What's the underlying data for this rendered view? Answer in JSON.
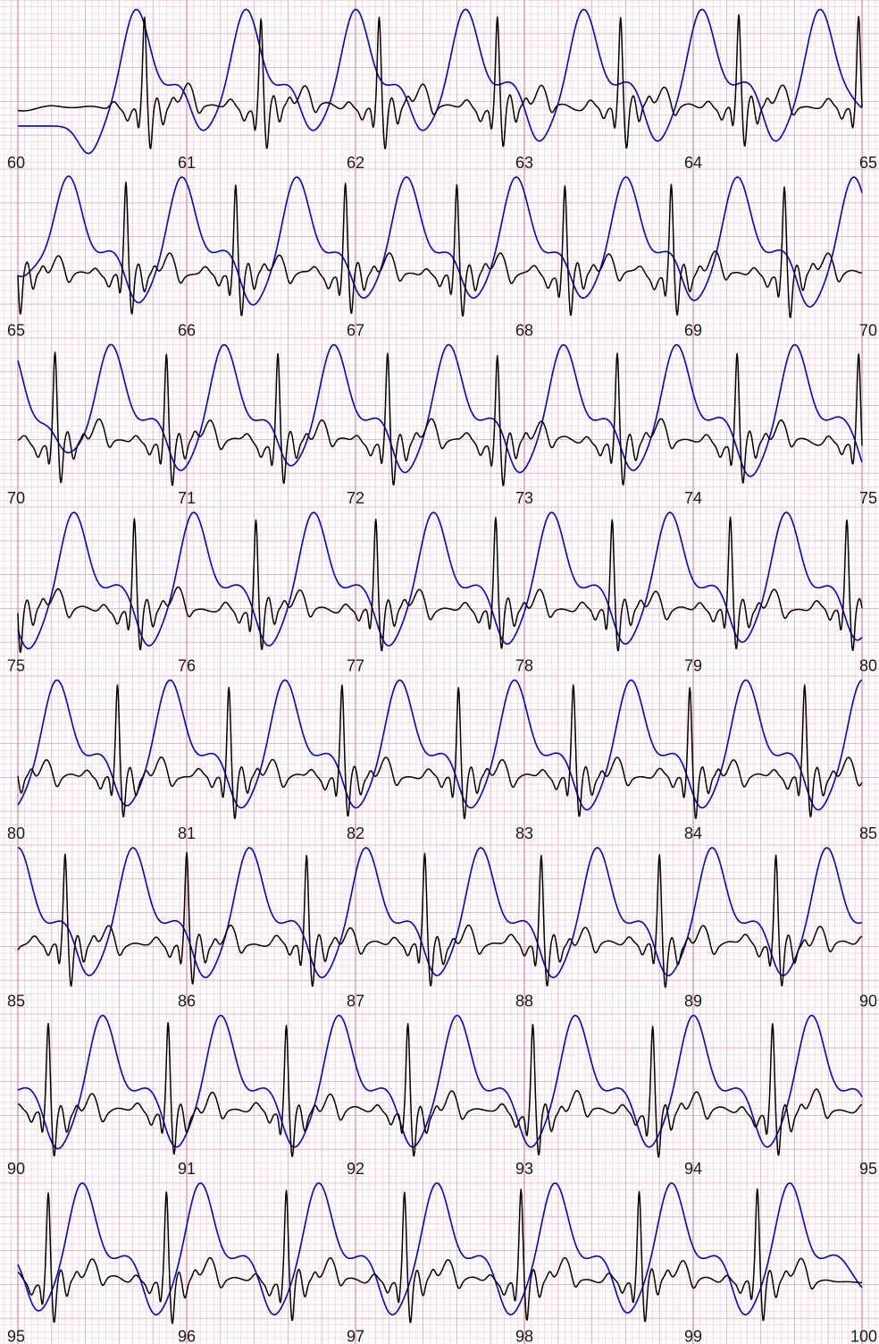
{
  "chart_data": {
    "type": "line",
    "title": "",
    "xlabel": "",
    "ylabel": "",
    "x_unit": "s",
    "seconds_per_row": 5,
    "rows": [
      {
        "start": 60,
        "end": 65,
        "labels": [
          "60",
          "61",
          "62",
          "63",
          "64",
          "65"
        ]
      },
      {
        "start": 65,
        "end": 70,
        "labels": [
          "65",
          "66",
          "67",
          "68",
          "69",
          "70"
        ]
      },
      {
        "start": 70,
        "end": 75,
        "labels": [
          "70",
          "71",
          "72",
          "73",
          "74",
          "75"
        ]
      },
      {
        "start": 75,
        "end": 80,
        "labels": [
          "75",
          "76",
          "77",
          "78",
          "79",
          "80"
        ]
      },
      {
        "start": 80,
        "end": 85,
        "labels": [
          "80",
          "81",
          "82",
          "83",
          "84",
          "85"
        ]
      },
      {
        "start": 85,
        "end": 90,
        "labels": [
          "85",
          "86",
          "87",
          "88",
          "89",
          "90"
        ]
      },
      {
        "start": 90,
        "end": 95,
        "labels": [
          "90",
          "91",
          "92",
          "93",
          "94",
          "95"
        ]
      },
      {
        "start": 95,
        "end": 100,
        "labels": [
          "95",
          "96",
          "97",
          "98",
          "99",
          "100"
        ]
      }
    ],
    "series": [
      {
        "color": "#000000",
        "beat_times": [
          60.75,
          61.44,
          62.14,
          62.84,
          63.57,
          64.27,
          64.98,
          65.64,
          66.29,
          66.94,
          67.6,
          68.24,
          68.87,
          69.54,
          70.22,
          70.88,
          71.54,
          72.19,
          72.84,
          73.55,
          74.26,
          74.98,
          75.69,
          76.41,
          77.12,
          77.83,
          78.52,
          79.22,
          79.91,
          80.59,
          81.25,
          81.92,
          82.61,
          83.29,
          83.98,
          84.66,
          85.28,
          86.0,
          86.71,
          87.41,
          88.1,
          88.8,
          89.49,
          90.18,
          90.89,
          91.59,
          92.31,
          93.05,
          93.76,
          94.47,
          95.18,
          95.88,
          96.59,
          97.29,
          97.98,
          98.68,
          99.38
        ],
        "r_amplitude": 1.0,
        "baseline_ratio": 0.55
      },
      {
        "color": "#0000cc",
        "peak_times": [
          60.7,
          61.35,
          62.0,
          62.65,
          63.35,
          64.05,
          64.75,
          65.3,
          65.97,
          66.65,
          67.3,
          67.95,
          68.6,
          69.26,
          69.95,
          70.55,
          71.22,
          71.87,
          72.55,
          73.23,
          73.9,
          74.6,
          75.33,
          76.04,
          76.75,
          77.46,
          78.16,
          78.86,
          79.55,
          80.23,
          80.9,
          81.58,
          82.26,
          82.94,
          83.63,
          84.31,
          85.0,
          85.68,
          86.37,
          87.06,
          87.74,
          88.43,
          89.11,
          89.79,
          90.5,
          91.2,
          91.9,
          92.6,
          93.3,
          94.0,
          94.7,
          95.38,
          96.08,
          96.78,
          97.48,
          98.18,
          98.87,
          99.57
        ],
        "ylim": [
          -1.0,
          1.0
        ]
      }
    ],
    "grid": true,
    "legend": "none"
  },
  "colors": {
    "grid_minor": "#f3c4cf",
    "grid_major": "#d98a9c",
    "background": "#ffffff",
    "ecg": "#000000",
    "pressure": "#0000cc"
  }
}
